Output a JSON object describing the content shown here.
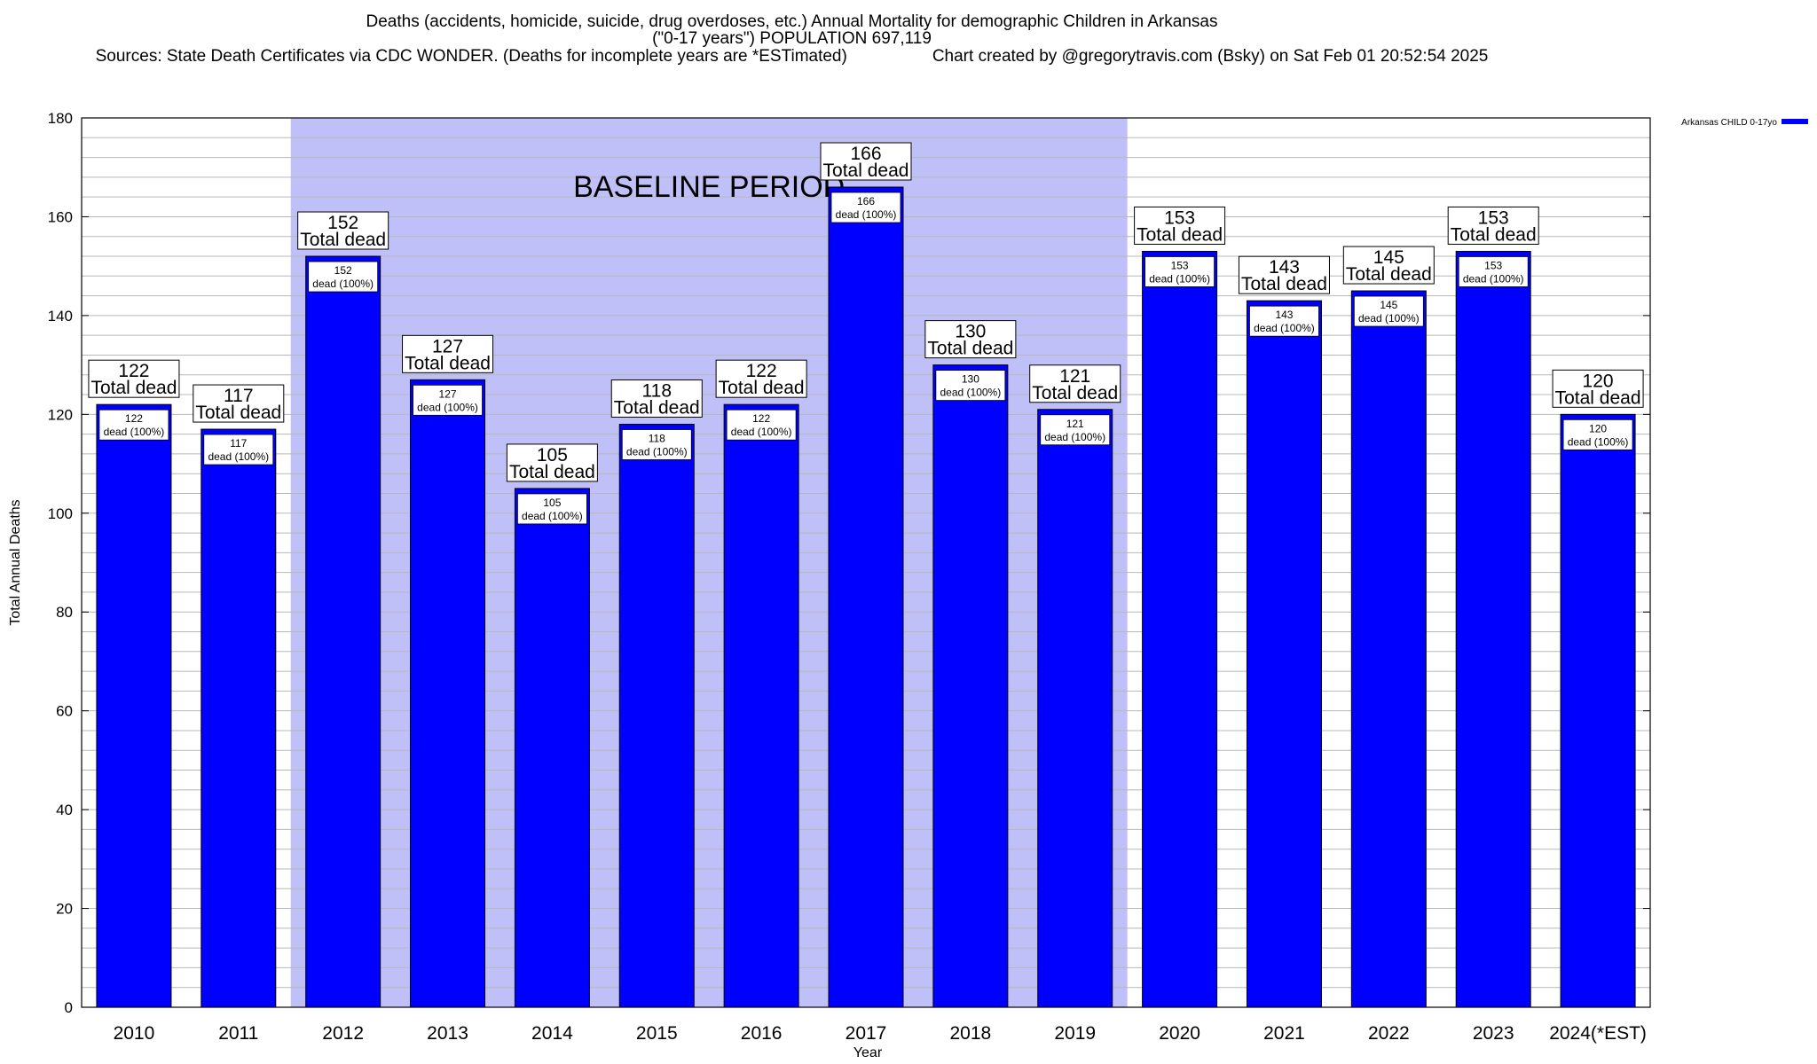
{
  "chart_data": {
    "type": "bar",
    "title": "Deaths (accidents, homicide, suicide, drug overdoses, etc.) Annual Mortality for demographic Children in Arkansas",
    "subtitle": "(\"0-17 years\") POPULATION 697,119",
    "source_line": "Sources: State Death Certificates via CDC WONDER. (Deaths for incomplete years are *ESTimated)",
    "credit_line": "Chart created by @gregorytravis.com (Bsky) on Sat Feb 01 20:52:54 2025",
    "xlabel": "Year",
    "ylabel": "Total Annual Deaths",
    "ylim": [
      0,
      180
    ],
    "yticks": [
      0,
      20,
      40,
      60,
      80,
      100,
      120,
      140,
      160,
      180
    ],
    "minor_tick_step": 4,
    "grid": true,
    "legend_position": "top-right",
    "categories": [
      "2010",
      "2011",
      "2012",
      "2013",
      "2014",
      "2015",
      "2016",
      "2017",
      "2018",
      "2019",
      "2020",
      "2021",
      "2022",
      "2023",
      "2024(*EST)"
    ],
    "series": [
      {
        "name": "Arkansas CHILD 0-17yo",
        "color": "#0000ff",
        "values": [
          122,
          117,
          152,
          127,
          105,
          118,
          122,
          166,
          130,
          121,
          153,
          143,
          145,
          153,
          120
        ]
      }
    ],
    "top_label_suffix": "Total dead",
    "inner_label_suffix": "dead (100%)",
    "baseline_period": {
      "label": "BASELINE PERIOD",
      "start_category": "2012",
      "end_category": "2019",
      "color": "#c0c0f8"
    }
  }
}
